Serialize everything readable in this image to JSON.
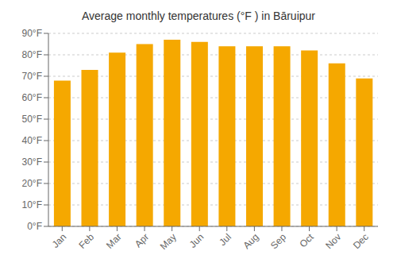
{
  "chart_data": {
    "type": "bar",
    "title": "Average monthly temperatures (°F ) in Bāruipur",
    "categories": [
      "Jan",
      "Feb",
      "Mar",
      "Apr",
      "May",
      "Jun",
      "Jul",
      "Aug",
      "Sep",
      "Oct",
      "Nov",
      "Dec"
    ],
    "values": [
      68,
      73,
      81,
      85,
      87,
      86,
      84,
      84,
      84,
      82,
      76,
      69
    ],
    "color": "#F5A800",
    "ylim": [
      0,
      90
    ],
    "yticks": [
      {
        "value": 0,
        "label": "0°F"
      },
      {
        "value": 10,
        "label": "10°F"
      },
      {
        "value": 20,
        "label": "20°F"
      },
      {
        "value": 30,
        "label": "30°F"
      },
      {
        "value": 40,
        "label": "40°F"
      },
      {
        "value": 50,
        "label": "50°F"
      },
      {
        "value": 60,
        "label": "60°F"
      },
      {
        "value": 70,
        "label": "70°F"
      },
      {
        "value": 80,
        "label": "80°F"
      },
      {
        "value": 90,
        "label": "90°F"
      }
    ],
    "grid": true
  }
}
